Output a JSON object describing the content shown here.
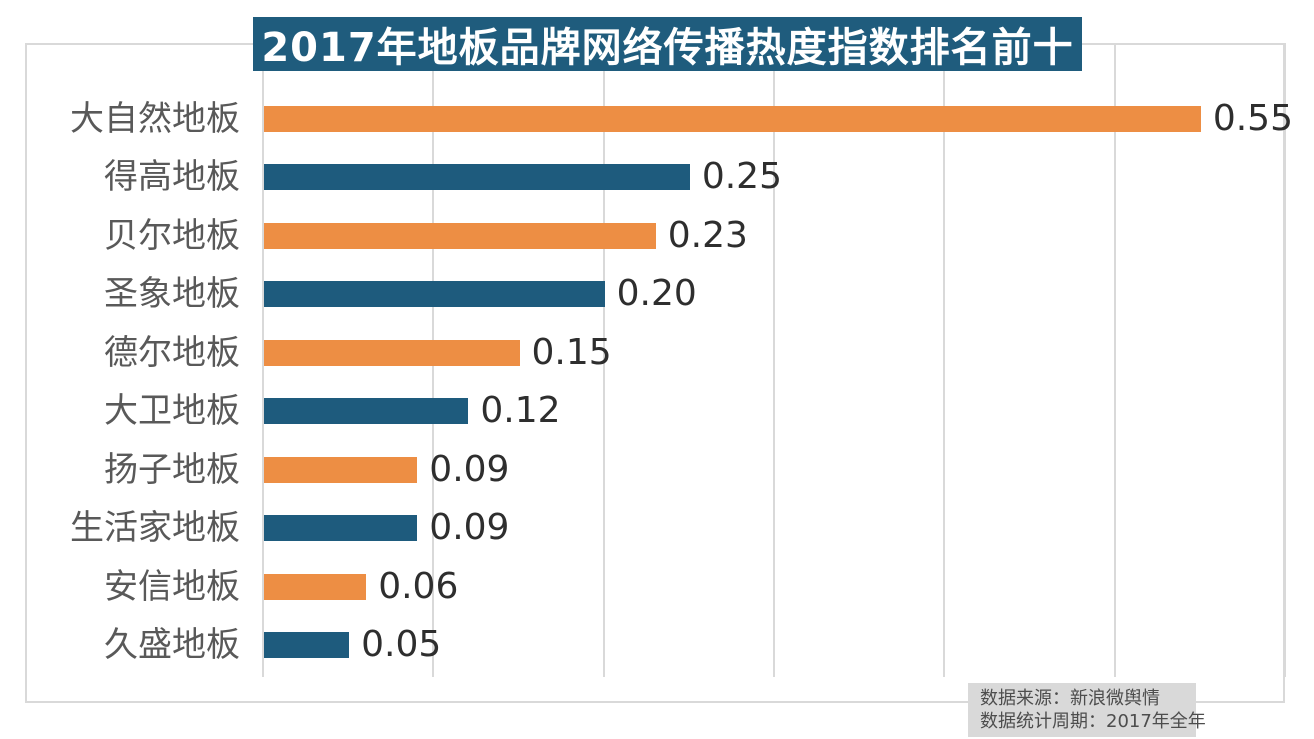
{
  "title": "2017年地板品牌网络传播热度指数排名前十",
  "chart_data": {
    "type": "bar",
    "orientation": "horizontal",
    "title": "2017年地板品牌网络传播热度指数排名前十",
    "categories": [
      "大自然地板",
      "得高地板",
      "贝尔地板",
      "圣象地板",
      "德尔地板",
      "大卫地板",
      "扬子地板",
      "生活家地板",
      "安信地板",
      "久盛地板"
    ],
    "values": [
      0.55,
      0.25,
      0.23,
      0.2,
      0.15,
      0.12,
      0.09,
      0.09,
      0.06,
      0.05
    ],
    "value_labels": [
      "0.55",
      "0.25",
      "0.23",
      "0.20",
      "0.15",
      "0.12",
      "0.09",
      "0.09",
      "0.06",
      "0.05"
    ],
    "xlim": [
      0,
      0.6
    ],
    "gridline_step": 0.1,
    "grid": true,
    "legend": false,
    "axis_tick_labels_visible": false,
    "bar_palette": [
      "#ED8E44",
      "#1E5B7D"
    ]
  },
  "colors": {
    "background": "#FFFFFF",
    "orange": "#ED8E44",
    "blue": "#1E5B7D",
    "title_bg": "#1F5C7D",
    "title_text": "#FFFFFF",
    "gridline": "#D9D9D9",
    "frame_border": "#D9D9D9",
    "category_label": "#595959",
    "value_label": "#2E2E2E",
    "source_bg": "#D9D9D9",
    "source_text": "#4D4D4D"
  },
  "source": {
    "line1": "数据来源：新浪微舆情",
    "line2": "数据统计周期：2017年全年"
  }
}
